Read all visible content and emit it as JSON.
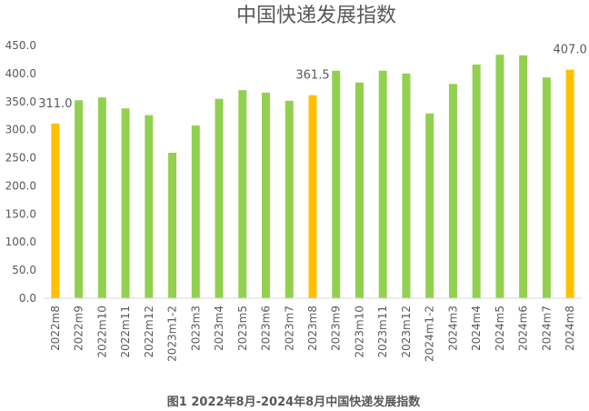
{
  "chart_data": {
    "type": "bar",
    "title": "中国快递发展指数",
    "caption": "图1 2022年8月-2024年8月中国快递发展指数",
    "categories": [
      "2022m8",
      "2022m9",
      "2022m10",
      "2022m11",
      "2022m12",
      "2023m1-2",
      "2023m3",
      "2023m4",
      "2023m5",
      "2023m6",
      "2023m7",
      "2023m8",
      "2023m9",
      "2023m10",
      "2023m11",
      "2023m12",
      "2024m1-2",
      "2024m3",
      "2024m4",
      "2024m5",
      "2024m6",
      "2024m7",
      "2024m8"
    ],
    "values": [
      311.0,
      352.5,
      357.5,
      338.0,
      326.0,
      259.0,
      307.5,
      355.0,
      370.5,
      366.0,
      351.5,
      361.5,
      405.0,
      384.0,
      405.0,
      400.0,
      329.0,
      381.5,
      416.0,
      433.5,
      432.5,
      393.0,
      407.0
    ],
    "highlight_indices": [
      0,
      11,
      22
    ],
    "data_labels": [
      {
        "index": 0,
        "text": "311.0"
      },
      {
        "index": 11,
        "text": "361.5"
      },
      {
        "index": 22,
        "text": "407.0"
      }
    ],
    "ylim": [
      0,
      450
    ],
    "y_ticks": [
      "0.0",
      "50.0",
      "100.0",
      "150.0",
      "200.0",
      "250.0",
      "300.0",
      "350.0",
      "400.0",
      "450.0"
    ],
    "grid": false,
    "colors": {
      "default": "#92d050",
      "highlight": "#ffc000",
      "axis": "#d9d9d9",
      "text": "#595959",
      "title": "#595959",
      "caption": "#595959"
    }
  }
}
